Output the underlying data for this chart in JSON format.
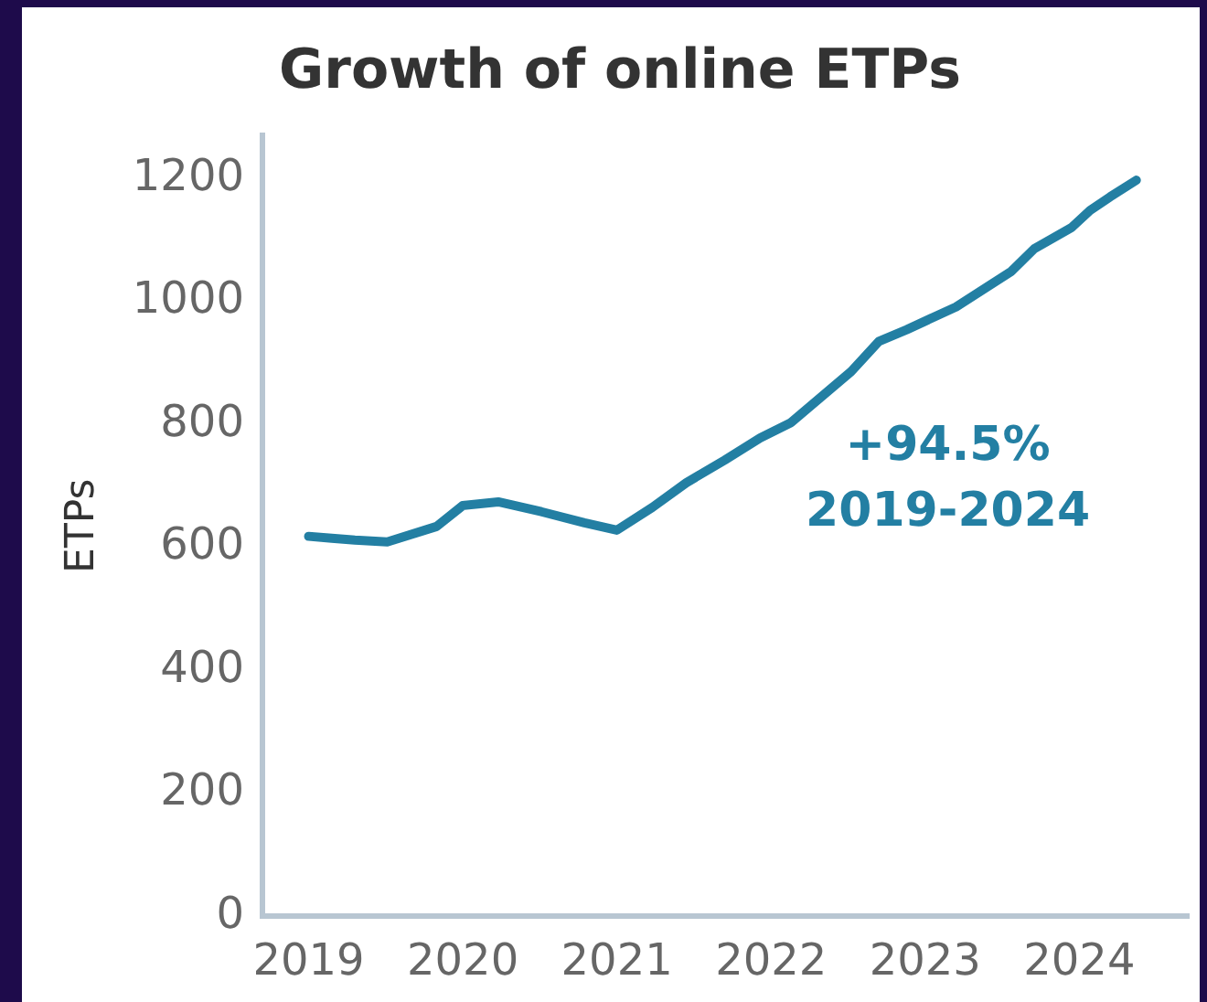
{
  "chart_data": {
    "type": "line",
    "title": "Growth of online ETPs",
    "ylabel": "ETPs",
    "x": [
      2019.0,
      2019.15,
      2019.3,
      2019.51,
      2019.83,
      2020.0,
      2020.23,
      2020.51,
      2020.79,
      2021.0,
      2021.23,
      2021.45,
      2021.7,
      2021.93,
      2022.13,
      2022.52,
      2022.7,
      2022.88,
      2023.2,
      2023.56,
      2023.71,
      2023.95,
      2024.07,
      2024.2,
      2024.37
    ],
    "series": [
      {
        "color": "#237fa3",
        "values": [
          618,
          615,
          612,
          609,
          634,
          668,
          674,
          658,
          640,
          628,
          665,
          705,
          742,
          778,
          803,
          886,
          935,
          954,
          991,
          1049,
          1086,
          1120,
          1148,
          1170,
          1197
        ]
      }
    ],
    "xlim": [
      2018.7,
      2024.71
    ],
    "xticks": [
      2019,
      2020,
      2021,
      2022,
      2023,
      2024
    ],
    "ylim": [
      0,
      1270
    ],
    "yticks": [
      0,
      200,
      400,
      600,
      800,
      1000,
      1200
    ],
    "grid": false,
    "legend": false,
    "marker": "none",
    "line_style": "solid",
    "annotations": [
      "+94.5%",
      "2019-2024"
    ]
  }
}
